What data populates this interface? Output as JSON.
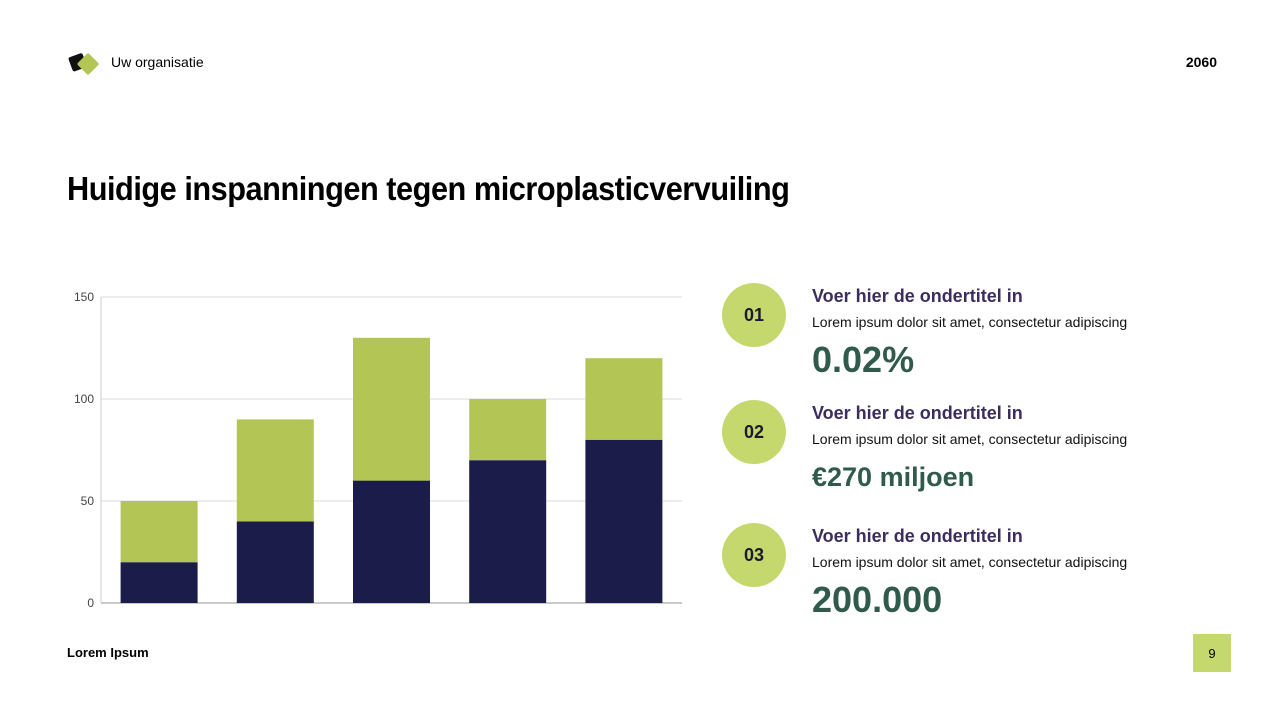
{
  "header": {
    "organization": "Uw organisatie",
    "year": "2060"
  },
  "title": "Huidige inspanningen tegen microplasticvervuiling",
  "colors": {
    "accent": "#c5d86d",
    "series_dark": "#1c1c4a",
    "series_green": "#b3c555",
    "value_text": "#2f5a4c"
  },
  "chart_data": {
    "type": "bar",
    "stacked": true,
    "categories": [
      "",
      "",
      "",
      "",
      ""
    ],
    "series": [
      {
        "values": [
          20,
          40,
          60,
          70,
          80
        ],
        "color": "#1c1c4a"
      },
      {
        "values": [
          30,
          50,
          70,
          30,
          40
        ],
        "color": "#b3c555"
      }
    ],
    "ylim": [
      0,
      150
    ],
    "yticks": [
      "0",
      "50",
      "100",
      "150"
    ],
    "grid": true,
    "legend": "none"
  },
  "items": [
    {
      "number": "01",
      "subtitle": "Voer hier de ondertitel in",
      "text": "Lorem ipsum dolor sit amet, consectetur adipiscing",
      "value": "0.02%"
    },
    {
      "number": "02",
      "subtitle": "Voer hier de ondertitel in",
      "text": "Lorem ipsum dolor sit amet, consectetur adipiscing",
      "value": "€270 miljoen"
    },
    {
      "number": "03",
      "subtitle": "Voer hier de ondertitel in",
      "text": "Lorem ipsum dolor sit amet, consectetur adipiscing",
      "value": "200.000"
    }
  ],
  "footer": {
    "text": "Lorem Ipsum",
    "page_number": "9"
  }
}
